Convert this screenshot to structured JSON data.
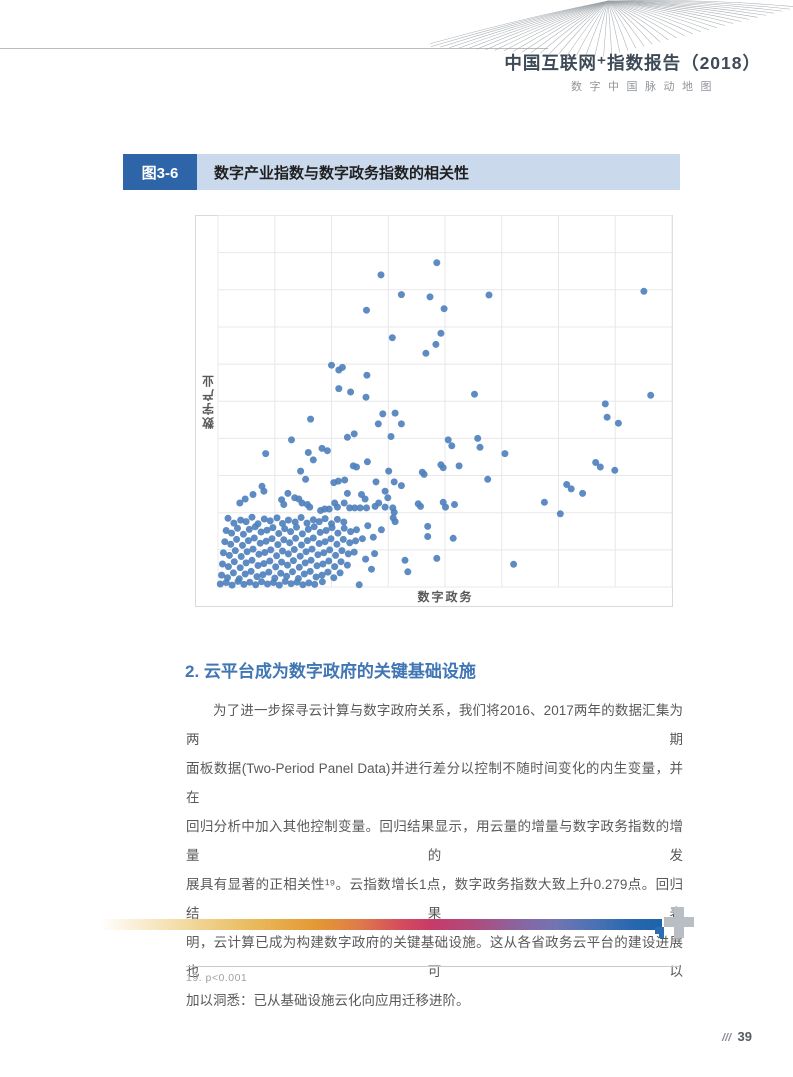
{
  "header": {
    "title": "中国互联网⁺指数报告（2018）",
    "subtitle": "数字中国脉动地图"
  },
  "figure": {
    "label": "图3-6",
    "title": "数字产业指数与数字政务指数的相关性"
  },
  "section": {
    "heading": "2. 云平台成为数字政府的关键基础设施",
    "paragraph_lines": [
      "为了进一步探寻云计算与数字政府关系，我们将2016、2017两年的数据汇集为两期",
      "面板数据(Two-Period Panel Data)并进行差分以控制不随时间变化的内生变量，并在",
      "回归分析中加入其他控制变量。回归结果显示，用云量的增量与数字政务指数的增量的发",
      "展具有显著的正相关性¹⁹。云指数增长1点，数字政务指数大致上升0.279点。回归结果表",
      "明，云计算已成为构建数字政府的关键基础设施。这从各省政务云平台的建设进展也可以",
      "加以洞悉：已从基础设施云化向应用迁移进阶。"
    ]
  },
  "footnote": {
    "text": "19. p<0.001"
  },
  "page_footer": {
    "slashes": "///",
    "page_number": "39"
  },
  "colors": {
    "accent_blue": "#2e64a8",
    "light_blue_bar": "#cad9ec",
    "heading_blue": "#4076b4",
    "body_gray": "#595959",
    "point_blue": "#4f81bd",
    "grid_gray": "#e8e8e8",
    "border_gray": "#d9d9d9"
  },
  "chart_data": {
    "type": "scatter",
    "title": "数字产业指数与数字政务指数的相关性",
    "xlabel": "数字政务",
    "ylabel": "数字产业",
    "x_range": [
      0,
      100
    ],
    "y_range": [
      0,
      100
    ],
    "grid": {
      "on": true,
      "columns": 8,
      "rows": 10
    },
    "legend": "none",
    "point_color": "#4f81bd",
    "points": [
      [
        48.2,
        87.3
      ],
      [
        35.9,
        84.0
      ],
      [
        40.4,
        78.7
      ],
      [
        46.7,
        78.1
      ],
      [
        59.7,
        78.6
      ],
      [
        93.8,
        79.6
      ],
      [
        32.7,
        74.5
      ],
      [
        49.8,
        74.9
      ],
      [
        49.1,
        68.3
      ],
      [
        38.4,
        67.1
      ],
      [
        48.0,
        65.3
      ],
      [
        45.8,
        62.9
      ],
      [
        25.0,
        59.7
      ],
      [
        26.6,
        58.4
      ],
      [
        27.4,
        59.1
      ],
      [
        32.8,
        57.0
      ],
      [
        26.6,
        53.4
      ],
      [
        29.2,
        52.5
      ],
      [
        32.6,
        51.1
      ],
      [
        56.5,
        51.9
      ],
      [
        95.3,
        51.6
      ],
      [
        85.3,
        49.3
      ],
      [
        85.7,
        45.7
      ],
      [
        88.2,
        44.1
      ],
      [
        36.3,
        46.6
      ],
      [
        39.0,
        46.8
      ],
      [
        35.3,
        43.9
      ],
      [
        40.4,
        43.9
      ],
      [
        20.4,
        45.2
      ],
      [
        28.5,
        40.3
      ],
      [
        30.0,
        41.2
      ],
      [
        38.1,
        40.5
      ],
      [
        50.7,
        39.6
      ],
      [
        51.5,
        38.0
      ],
      [
        57.2,
        40.0
      ],
      [
        57.7,
        37.6
      ],
      [
        16.2,
        39.6
      ],
      [
        10.5,
        35.9
      ],
      [
        19.9,
        36.2
      ],
      [
        21.0,
        34.2
      ],
      [
        22.9,
        37.3
      ],
      [
        24.1,
        36.7
      ],
      [
        63.2,
        35.9
      ],
      [
        83.2,
        33.5
      ],
      [
        84.2,
        32.3
      ],
      [
        87.4,
        31.4
      ],
      [
        18.2,
        31.2
      ],
      [
        19.3,
        29.0
      ],
      [
        29.8,
        32.6
      ],
      [
        30.5,
        32.3
      ],
      [
        32.9,
        33.7
      ],
      [
        37.6,
        31.2
      ],
      [
        45.0,
        30.9
      ],
      [
        45.4,
        30.3
      ],
      [
        49.1,
        32.9
      ],
      [
        49.6,
        32.1
      ],
      [
        53.1,
        32.6
      ],
      [
        59.4,
        29.0
      ],
      [
        25.5,
        28.1
      ],
      [
        26.5,
        28.5
      ],
      [
        27.9,
        28.8
      ],
      [
        34.8,
        28.3
      ],
      [
        38.8,
        28.3
      ],
      [
        40.4,
        27.3
      ],
      [
        28.5,
        25.2
      ],
      [
        31.6,
        24.9
      ],
      [
        32.4,
        23.7
      ],
      [
        36.8,
        25.8
      ],
      [
        37.4,
        24.0
      ],
      [
        76.8,
        27.6
      ],
      [
        77.8,
        26.4
      ],
      [
        80.3,
        25.2
      ],
      [
        4.8,
        22.6
      ],
      [
        6.0,
        23.7
      ],
      [
        7.7,
        24.9
      ],
      [
        9.7,
        27.1
      ],
      [
        10.1,
        25.8
      ],
      [
        14.0,
        23.5
      ],
      [
        14.5,
        22.2
      ],
      [
        15.4,
        25.2
      ],
      [
        16.9,
        24.0
      ],
      [
        17.8,
        23.7
      ],
      [
        18.5,
        22.6
      ],
      [
        19.7,
        22.2
      ],
      [
        20.2,
        21.5
      ],
      [
        22.6,
        20.6
      ],
      [
        23.5,
        21.0
      ],
      [
        24.5,
        21.0
      ],
      [
        25.7,
        22.6
      ],
      [
        26.3,
        21.5
      ],
      [
        27.8,
        22.6
      ],
      [
        29.0,
        21.3
      ],
      [
        30.1,
        21.3
      ],
      [
        31.3,
        21.3
      ],
      [
        32.7,
        21.3
      ],
      [
        34.6,
        21.7
      ],
      [
        35.4,
        22.6
      ],
      [
        36.8,
        21.5
      ],
      [
        38.5,
        21.3
      ],
      [
        38.8,
        20.1
      ],
      [
        44.1,
        22.4
      ],
      [
        44.6,
        21.7
      ],
      [
        49.6,
        22.8
      ],
      [
        50.1,
        21.5
      ],
      [
        52.1,
        22.2
      ],
      [
        71.9,
        22.8
      ],
      [
        75.4,
        19.7
      ],
      [
        41.2,
        7.2
      ],
      [
        41.8,
        4.1
      ],
      [
        48.2,
        7.7
      ],
      [
        65.1,
        6.1
      ],
      [
        46.2,
        16.3
      ],
      [
        46.2,
        13.6
      ],
      [
        51.8,
        13.1
      ],
      [
        36.0,
        15.4
      ],
      [
        38.6,
        18.6
      ],
      [
        39.0,
        17.6
      ],
      [
        31.1,
        0.6
      ],
      [
        32.5,
        7.5
      ],
      [
        33.8,
        4.8
      ],
      [
        34.5,
        9.0
      ],
      [
        33.0,
        16.5
      ],
      [
        34.2,
        13.4
      ],
      [
        2.2,
        18.5
      ],
      [
        3.5,
        17.2
      ],
      [
        5.0,
        18.0
      ],
      [
        6.2,
        17.6
      ],
      [
        7.5,
        18.8
      ],
      [
        8.8,
        17.0
      ],
      [
        10.2,
        18.3
      ],
      [
        11.5,
        17.8
      ],
      [
        13.0,
        18.6
      ],
      [
        14.2,
        17.1
      ],
      [
        15.5,
        18.0
      ],
      [
        17.0,
        17.5
      ],
      [
        18.3,
        18.7
      ],
      [
        19.6,
        17.2
      ],
      [
        21.0,
        18.1
      ],
      [
        22.3,
        17.6
      ],
      [
        23.6,
        18.4
      ],
      [
        25.0,
        17.0
      ],
      [
        26.3,
        18.2
      ],
      [
        27.7,
        17.5
      ],
      [
        1.8,
        15.2
      ],
      [
        3.0,
        14.5
      ],
      [
        4.3,
        15.8
      ],
      [
        5.6,
        14.2
      ],
      [
        6.9,
        15.5
      ],
      [
        8.2,
        16.2
      ],
      [
        9.5,
        14.8
      ],
      [
        10.8,
        15.3
      ],
      [
        12.1,
        16.0
      ],
      [
        13.4,
        14.4
      ],
      [
        14.7,
        15.7
      ],
      [
        16.0,
        14.9
      ],
      [
        17.3,
        16.1
      ],
      [
        18.6,
        14.3
      ],
      [
        19.9,
        15.5
      ],
      [
        21.2,
        16.2
      ],
      [
        22.5,
        14.7
      ],
      [
        23.8,
        15.2
      ],
      [
        25.1,
        16.0
      ],
      [
        26.4,
        14.5
      ],
      [
        27.8,
        15.8
      ],
      [
        29.2,
        14.9
      ],
      [
        30.5,
        15.4
      ],
      [
        1.5,
        12.2
      ],
      [
        2.8,
        11.5
      ],
      [
        4.1,
        12.8
      ],
      [
        5.4,
        11.2
      ],
      [
        6.7,
        12.5
      ],
      [
        8.0,
        13.2
      ],
      [
        9.3,
        11.8
      ],
      [
        10.6,
        12.3
      ],
      [
        11.9,
        13.0
      ],
      [
        13.2,
        11.4
      ],
      [
        14.5,
        12.7
      ],
      [
        15.8,
        11.9
      ],
      [
        17.1,
        13.1
      ],
      [
        18.4,
        11.3
      ],
      [
        19.7,
        12.5
      ],
      [
        21.0,
        13.2
      ],
      [
        22.3,
        11.7
      ],
      [
        23.6,
        12.2
      ],
      [
        24.9,
        13.0
      ],
      [
        26.2,
        11.5
      ],
      [
        27.6,
        12.8
      ],
      [
        29.0,
        11.9
      ],
      [
        30.3,
        12.4
      ],
      [
        31.8,
        13.0
      ],
      [
        1.2,
        9.2
      ],
      [
        2.5,
        8.5
      ],
      [
        3.8,
        9.8
      ],
      [
        5.1,
        8.2
      ],
      [
        6.4,
        9.5
      ],
      [
        7.7,
        10.2
      ],
      [
        9.0,
        8.8
      ],
      [
        10.3,
        9.3
      ],
      [
        11.6,
        10.0
      ],
      [
        12.9,
        8.4
      ],
      [
        14.2,
        9.7
      ],
      [
        15.5,
        8.9
      ],
      [
        16.8,
        10.1
      ],
      [
        18.1,
        8.3
      ],
      [
        19.4,
        9.5
      ],
      [
        20.7,
        10.2
      ],
      [
        22.0,
        8.7
      ],
      [
        23.3,
        9.2
      ],
      [
        24.6,
        10.0
      ],
      [
        25.9,
        8.5
      ],
      [
        27.3,
        9.8
      ],
      [
        28.7,
        8.9
      ],
      [
        30.0,
        9.4
      ],
      [
        1.0,
        6.2
      ],
      [
        2.3,
        5.5
      ],
      [
        3.6,
        6.8
      ],
      [
        4.9,
        5.2
      ],
      [
        6.2,
        6.5
      ],
      [
        7.5,
        7.2
      ],
      [
        8.8,
        5.8
      ],
      [
        10.1,
        6.3
      ],
      [
        11.4,
        7.0
      ],
      [
        12.7,
        5.4
      ],
      [
        14.0,
        6.7
      ],
      [
        15.3,
        5.9
      ],
      [
        16.6,
        7.1
      ],
      [
        17.9,
        5.3
      ],
      [
        19.2,
        6.5
      ],
      [
        20.5,
        7.2
      ],
      [
        21.8,
        5.7
      ],
      [
        23.1,
        6.2
      ],
      [
        24.4,
        7.0
      ],
      [
        25.7,
        5.5
      ],
      [
        27.1,
        6.8
      ],
      [
        28.5,
        5.9
      ],
      [
        0.8,
        3.2
      ],
      [
        2.1,
        2.5
      ],
      [
        3.4,
        3.8
      ],
      [
        4.7,
        2.2
      ],
      [
        6.0,
        3.5
      ],
      [
        7.3,
        4.2
      ],
      [
        8.6,
        2.8
      ],
      [
        9.9,
        3.3
      ],
      [
        11.2,
        4.0
      ],
      [
        12.5,
        2.4
      ],
      [
        13.8,
        3.7
      ],
      [
        15.1,
        2.9
      ],
      [
        16.4,
        4.1
      ],
      [
        17.7,
        2.3
      ],
      [
        19.0,
        3.5
      ],
      [
        20.3,
        4.2
      ],
      [
        21.6,
        2.7
      ],
      [
        22.9,
        3.2
      ],
      [
        24.2,
        4.0
      ],
      [
        25.5,
        2.5
      ],
      [
        26.9,
        3.8
      ],
      [
        0.5,
        0.8
      ],
      [
        1.8,
        1.2
      ],
      [
        3.1,
        0.5
      ],
      [
        4.4,
        1.5
      ],
      [
        5.7,
        0.7
      ],
      [
        7.0,
        1.3
      ],
      [
        8.3,
        0.6
      ],
      [
        9.6,
        1.4
      ],
      [
        10.9,
        0.8
      ],
      [
        12.2,
        1.2
      ],
      [
        13.5,
        0.5
      ],
      [
        14.8,
        1.5
      ],
      [
        16.1,
        0.9
      ],
      [
        17.4,
        1.3
      ],
      [
        18.7,
        0.6
      ],
      [
        20.0,
        1.1
      ],
      [
        21.3,
        0.7
      ],
      [
        23.0,
        1.4
      ]
    ]
  }
}
